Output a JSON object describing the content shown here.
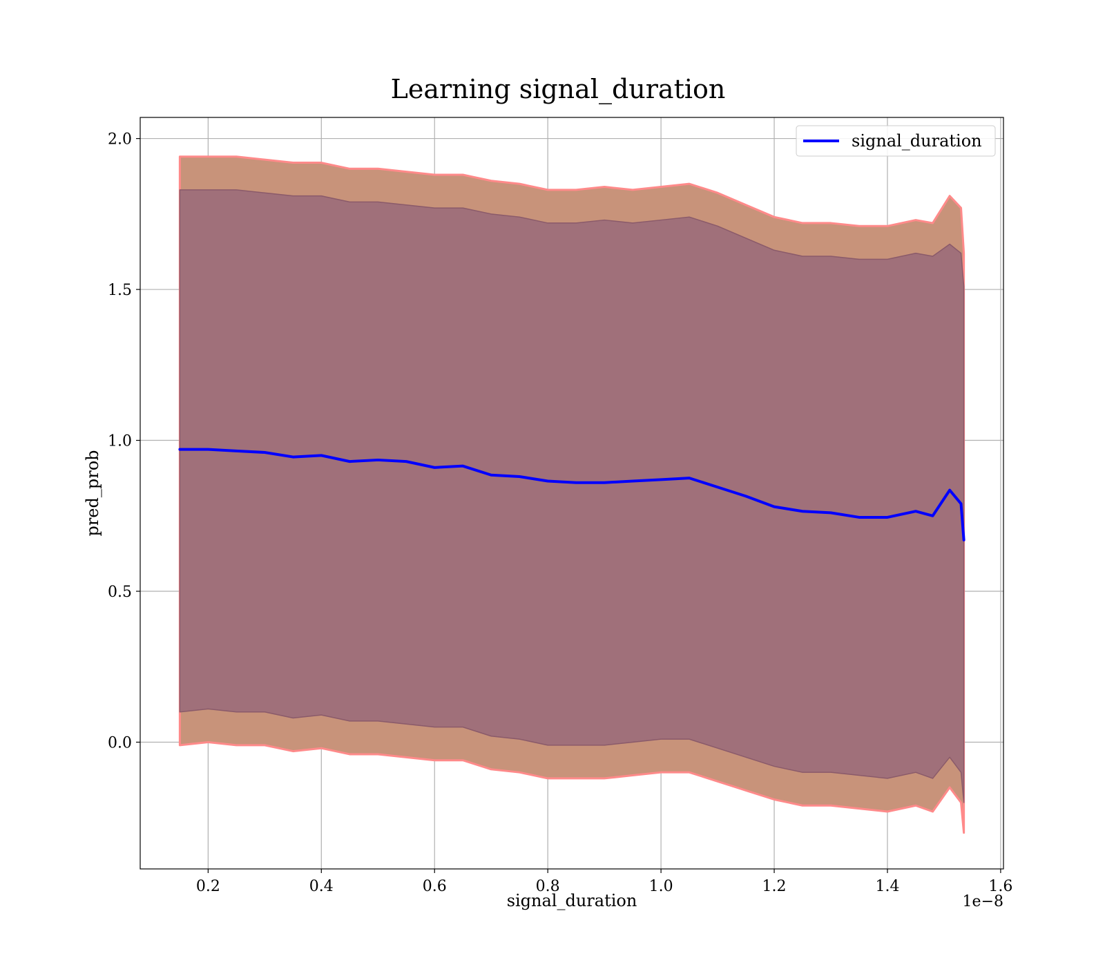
{
  "chart_data": {
    "type": "line",
    "title": "Learning signal_duration",
    "xlabel": "signal_duration",
    "ylabel": "pred_prob",
    "x_offset_text": "1e−8",
    "xlim": [
      0.08,
      1.605
    ],
    "ylim": [
      -0.42,
      2.07
    ],
    "xticks": [
      0.2,
      0.4,
      0.6,
      0.8,
      1.0,
      1.2,
      1.4,
      1.6
    ],
    "xtick_labels": [
      "0.2",
      "0.4",
      "0.6",
      "0.8",
      "1.0",
      "1.2",
      "1.4",
      "1.6"
    ],
    "yticks": [
      0.0,
      0.5,
      1.0,
      1.5,
      2.0
    ],
    "ytick_labels": [
      "0.0",
      "0.5",
      "1.0",
      "1.5",
      "2.0"
    ],
    "grid": true,
    "legend_position": "top-right",
    "colors": {
      "line": "#0000ff",
      "outer_band": "#c8937a",
      "outer_band_edge": "#ff8a8a",
      "inner_band": "#a0707a",
      "inner_band_edge": "#8a5a6a"
    },
    "series": [
      {
        "name": "signal_duration",
        "x": [
          0.15,
          0.2,
          0.25,
          0.3,
          0.35,
          0.4,
          0.45,
          0.5,
          0.55,
          0.6,
          0.65,
          0.7,
          0.75,
          0.8,
          0.85,
          0.9,
          0.95,
          1.0,
          1.05,
          1.1,
          1.15,
          1.2,
          1.25,
          1.3,
          1.35,
          1.4,
          1.45,
          1.48,
          1.51,
          1.53,
          1.535
        ],
        "y": [
          0.97,
          0.97,
          0.965,
          0.96,
          0.945,
          0.95,
          0.93,
          0.935,
          0.93,
          0.91,
          0.915,
          0.885,
          0.88,
          0.865,
          0.86,
          0.86,
          0.865,
          0.87,
          0.875,
          0.845,
          0.815,
          0.78,
          0.765,
          0.76,
          0.745,
          0.745,
          0.765,
          0.75,
          0.835,
          0.79,
          0.67
        ]
      }
    ],
    "bands": [
      {
        "label": "outer",
        "x": [
          0.15,
          0.2,
          0.25,
          0.3,
          0.35,
          0.4,
          0.45,
          0.5,
          0.55,
          0.6,
          0.65,
          0.7,
          0.75,
          0.8,
          0.85,
          0.9,
          0.95,
          1.0,
          1.05,
          1.1,
          1.15,
          1.2,
          1.25,
          1.3,
          1.35,
          1.4,
          1.45,
          1.48,
          1.51,
          1.53,
          1.535
        ],
        "upper": [
          1.94,
          1.94,
          1.94,
          1.93,
          1.92,
          1.92,
          1.9,
          1.9,
          1.89,
          1.88,
          1.88,
          1.86,
          1.85,
          1.83,
          1.83,
          1.84,
          1.83,
          1.84,
          1.85,
          1.82,
          1.78,
          1.74,
          1.72,
          1.72,
          1.71,
          1.71,
          1.73,
          1.72,
          1.81,
          1.77,
          1.62
        ],
        "lower": [
          -0.01,
          0.0,
          -0.01,
          -0.01,
          -0.03,
          -0.02,
          -0.04,
          -0.04,
          -0.05,
          -0.06,
          -0.06,
          -0.09,
          -0.1,
          -0.12,
          -0.12,
          -0.12,
          -0.11,
          -0.1,
          -0.1,
          -0.13,
          -0.16,
          -0.19,
          -0.21,
          -0.21,
          -0.22,
          -0.23,
          -0.21,
          -0.23,
          -0.15,
          -0.2,
          -0.3
        ]
      },
      {
        "label": "inner",
        "x": [
          0.15,
          0.2,
          0.25,
          0.3,
          0.35,
          0.4,
          0.45,
          0.5,
          0.55,
          0.6,
          0.65,
          0.7,
          0.75,
          0.8,
          0.85,
          0.9,
          0.95,
          1.0,
          1.05,
          1.1,
          1.15,
          1.2,
          1.25,
          1.3,
          1.35,
          1.4,
          1.45,
          1.48,
          1.51,
          1.53,
          1.535
        ],
        "upper": [
          1.83,
          1.83,
          1.83,
          1.82,
          1.81,
          1.81,
          1.79,
          1.79,
          1.78,
          1.77,
          1.77,
          1.75,
          1.74,
          1.72,
          1.72,
          1.73,
          1.72,
          1.73,
          1.74,
          1.71,
          1.67,
          1.63,
          1.61,
          1.61,
          1.6,
          1.6,
          1.62,
          1.61,
          1.65,
          1.62,
          1.51
        ],
        "lower": [
          0.1,
          0.11,
          0.1,
          0.1,
          0.08,
          0.09,
          0.07,
          0.07,
          0.06,
          0.05,
          0.05,
          0.02,
          0.01,
          -0.01,
          -0.01,
          -0.01,
          0.0,
          0.01,
          0.01,
          -0.02,
          -0.05,
          -0.08,
          -0.1,
          -0.1,
          -0.11,
          -0.12,
          -0.1,
          -0.12,
          -0.05,
          -0.1,
          -0.2
        ]
      }
    ]
  }
}
